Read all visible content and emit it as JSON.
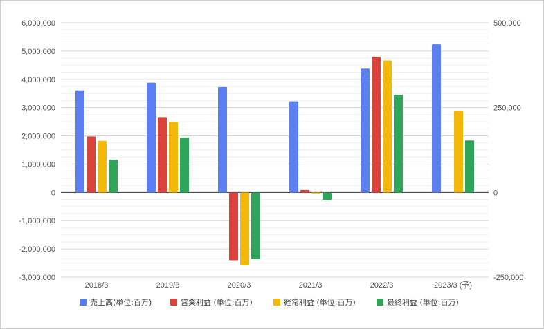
{
  "chart_data": {
    "type": "bar",
    "categories": [
      "2018/3",
      "2019/3",
      "2020/3",
      "2021/3",
      "2022/3",
      "2023/3 (予)"
    ],
    "series": [
      {
        "name": "売上高(単位:百万)",
        "axis": "left",
        "color": "#5b7ef0",
        "values": [
          3610000,
          3880000,
          3730000,
          3220000,
          4380000,
          5240000
        ]
      },
      {
        "name": "営業利益 (単位:百万)",
        "axis": "right",
        "color": "#d9433b",
        "values": [
          165000,
          222000,
          -200000,
          7000,
          400000,
          null
        ]
      },
      {
        "name": "経常利益 (単位:百万)",
        "axis": "right",
        "color": "#f2b90b",
        "values": [
          152000,
          208000,
          -215000,
          -3000,
          389000,
          241000
        ]
      },
      {
        "name": "最終利益 (単位:百万)",
        "axis": "right",
        "color": "#2fa55a",
        "values": [
          96000,
          162000,
          -197000,
          -22000,
          288000,
          153000
        ]
      }
    ],
    "left_axis": {
      "min": -3000000,
      "max": 6000000,
      "ticks": [
        "6,000,000",
        "5,000,000",
        "4,000,000",
        "3,000,000",
        "2,000,000",
        "1,000,000",
        "0",
        "-1,000,000",
        "-2,000,000",
        "-3,000,000"
      ]
    },
    "right_axis": {
      "min": -250000,
      "max": 500000,
      "ticks": [
        "500,000",
        "250,000",
        "0",
        "-250,000"
      ]
    },
    "grid": true,
    "legend_position": "bottom"
  }
}
